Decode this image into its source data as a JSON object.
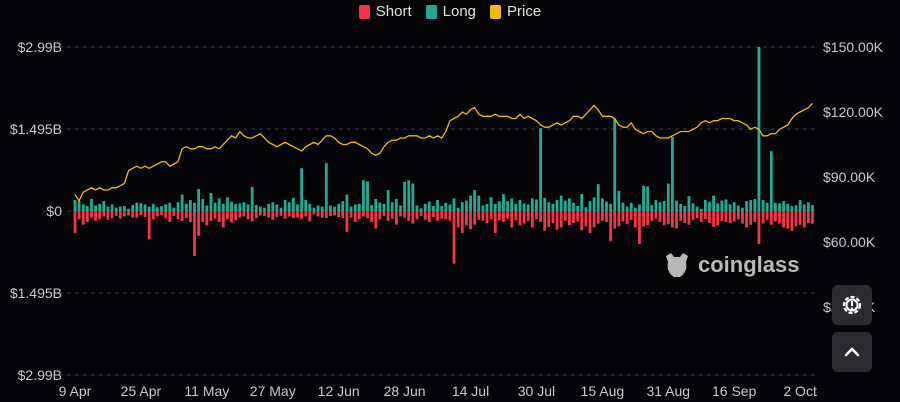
{
  "legend": [
    {
      "label": "Short",
      "color": "#f23645"
    },
    {
      "label": "Long",
      "color": "#22ab94"
    },
    {
      "label": "Price",
      "color": "#f0b90b"
    }
  ],
  "watermark": "coinglass",
  "controls": {
    "settings_icon": "gear-icon",
    "scroll_top_icon": "chevron-up-icon"
  },
  "chart_data": {
    "type": "bar",
    "title": "",
    "grid": true,
    "legend_position": "top",
    "x_ticks": [
      "9 Apr",
      "25 Apr",
      "11 May",
      "27 May",
      "12 Jun",
      "28 Jun",
      "14 Jul",
      "30 Jul",
      "15 Aug",
      "31 Aug",
      "16 Sep",
      "2 Oct"
    ],
    "y_left": {
      "ticks": [
        "$2.99B",
        "$1.495B",
        "$0",
        "$1.495B",
        "$2.99B"
      ],
      "range_musd": [
        -2990,
        2990
      ]
    },
    "y_right": {
      "ticks": [
        "$150.00K",
        "$120.00K",
        "$90.00K",
        "$60.00K",
        "$30.00K"
      ],
      "range_kusd": [
        30,
        150
      ]
    },
    "series": [
      {
        "name": "Long",
        "unit": "$M",
        "color": "#22ab94",
        "values": [
          200,
          180,
          120,
          90,
          220,
          100,
          130,
          180,
          80,
          120,
          60,
          80,
          90,
          40,
          110,
          150,
          140,
          120,
          80,
          130,
          70,
          90,
          120,
          150,
          60,
          160,
          300,
          130,
          200,
          150,
          400,
          220,
          100,
          330,
          150,
          230,
          130,
          250,
          170,
          130,
          140,
          160,
          120,
          440,
          110,
          80,
          60,
          130,
          160,
          120,
          60,
          200,
          160,
          240,
          120,
          780,
          200,
          130,
          60,
          100,
          80,
          870,
          100,
          80,
          130,
          180,
          300,
          80,
          120,
          130,
          560,
          540,
          110,
          220,
          150,
          130,
          380,
          160,
          220,
          100,
          530,
          560,
          500,
          100,
          50,
          130,
          170,
          90,
          200,
          90,
          150,
          120,
          230,
          60,
          160,
          190,
          280,
          380,
          280,
          100,
          130,
          250,
          130,
          180,
          310,
          180,
          230,
          130,
          200,
          140,
          120,
          230,
          210,
          1510,
          240,
          160,
          130,
          200,
          280,
          190,
          230,
          150,
          90,
          310,
          70,
          180,
          250,
          490,
          230,
          170,
          130,
          1690,
          370,
          150,
          80,
          150,
          60,
          120,
          460,
          450,
          110,
          200,
          160,
          180,
          500,
          1350,
          190,
          130,
          90,
          270,
          140,
          80,
          40,
          200,
          170,
          280,
          140,
          190,
          210,
          120,
          160,
          100,
          60,
          180,
          200,
          220,
          2990,
          200,
          150,
          1090,
          150,
          140,
          180,
          130,
          90,
          100,
          200,
          120,
          160,
          110
        ]
      },
      {
        "name": "Short",
        "unit": "$M",
        "color": "#f23645",
        "values": [
          400,
          150,
          250,
          200,
          120,
          180,
          150,
          100,
          160,
          130,
          90,
          140,
          100,
          80,
          120,
          120,
          80,
          110,
          520,
          150,
          100,
          80,
          130,
          200,
          90,
          150,
          180,
          130,
          200,
          820,
          450,
          200,
          260,
          180,
          140,
          200,
          300,
          150,
          210,
          170,
          120,
          100,
          150,
          190,
          130,
          80,
          90,
          120,
          160,
          110,
          90,
          140,
          100,
          130,
          120,
          150,
          100,
          190,
          60,
          100,
          120,
          130,
          90,
          80,
          110,
          130,
          380,
          120,
          200,
          150,
          100,
          130,
          200,
          320,
          150,
          90,
          180,
          140,
          250,
          100,
          120,
          180,
          230,
          150,
          90,
          160,
          200,
          110,
          180,
          140,
          150,
          180,
          960,
          300,
          400,
          260,
          330,
          250,
          160,
          180,
          220,
          150,
          400,
          170,
          200,
          140,
          300,
          170,
          260,
          230,
          180,
          300,
          150,
          200,
          360,
          290,
          220,
          340,
          300,
          180,
          260,
          220,
          190,
          350,
          280,
          400,
          300,
          230,
          180,
          200,
          550,
          320,
          280,
          190,
          240,
          160,
          300,
          600,
          280,
          260,
          180,
          140,
          200,
          260,
          240,
          300,
          320,
          180,
          220,
          250,
          160,
          130,
          200,
          150,
          220,
          290,
          260,
          180,
          200,
          220,
          190,
          150,
          230,
          300,
          250,
          200,
          600,
          230,
          160,
          250,
          190,
          230,
          300,
          320,
          360,
          280,
          250,
          300,
          220,
          230
        ]
      },
      {
        "name": "Price",
        "unit": "$K",
        "color": "#f0b90b",
        "values": [
          82,
          79,
          83,
          84,
          85,
          84,
          85,
          84,
          84,
          85,
          85,
          86,
          87,
          93,
          94,
          95,
          94,
          95,
          94,
          95,
          96,
          97,
          97,
          95,
          96,
          97,
          103,
          104,
          103,
          103,
          104,
          104,
          103,
          103,
          104,
          103,
          105,
          107,
          109,
          108,
          111,
          109,
          108,
          108,
          109,
          110,
          108,
          106,
          105,
          104,
          105,
          106,
          105,
          104,
          103,
          102,
          104,
          105,
          106,
          105,
          107,
          109,
          109,
          108,
          106,
          105,
          105,
          106,
          106,
          105,
          104,
          103,
          101,
          100,
          101,
          104,
          106,
          107,
          107,
          108,
          108,
          109,
          109,
          109,
          108,
          108,
          109,
          108,
          109,
          108,
          111,
          116,
          117,
          118,
          120,
          119,
          121,
          122,
          119,
          118,
          118,
          118,
          119,
          118,
          118,
          118,
          117,
          117,
          119,
          117,
          118,
          117,
          116,
          114,
          113,
          113,
          114,
          115,
          114,
          115,
          116,
          118,
          118,
          117,
          119,
          121,
          123,
          121,
          118,
          118,
          118,
          117,
          114,
          113,
          113,
          115,
          112,
          111,
          110,
          111,
          111,
          109,
          108,
          108,
          108,
          109,
          110,
          111,
          111,
          111,
          112,
          113,
          115,
          116,
          115,
          116,
          116,
          117,
          117,
          117,
          116,
          116,
          115,
          114,
          112,
          113,
          112,
          109,
          109,
          110,
          110,
          112,
          113,
          114,
          117,
          119,
          120,
          121,
          122,
          124
        ]
      }
    ]
  }
}
